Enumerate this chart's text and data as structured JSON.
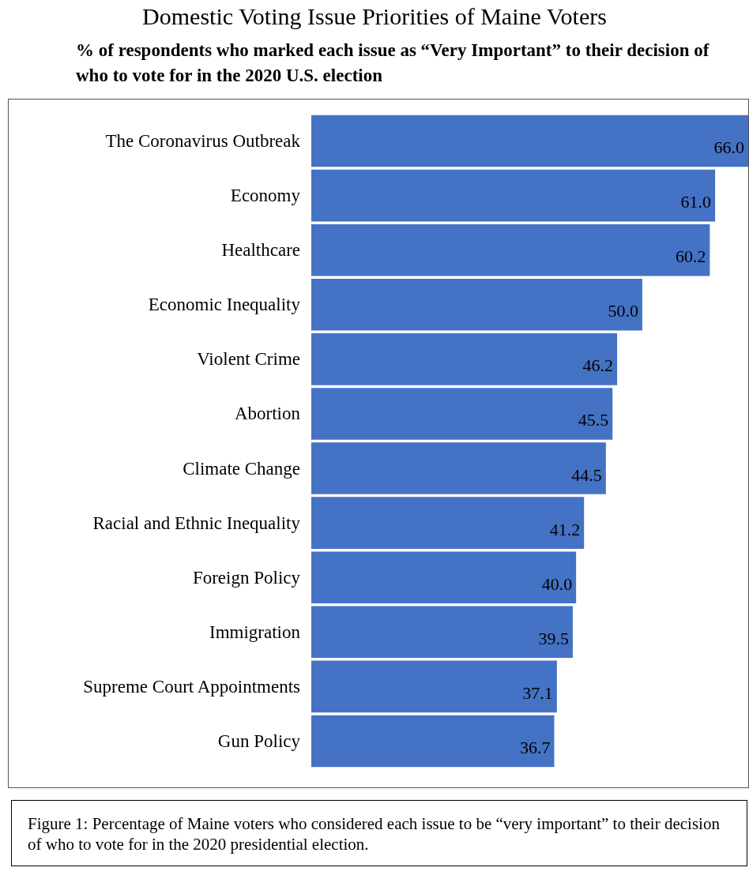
{
  "chart_data": {
    "type": "bar",
    "orientation": "horizontal",
    "title": "Domestic Voting Issue Priorities of Maine Voters",
    "subtitle": "% of respondents who marked each issue as “Very Important” to their decision of who to vote for in the 2020 U.S. election",
    "categories": [
      "The Coronavirus Outbreak",
      "Economy",
      "Healthcare",
      "Economic Inequality",
      "Violent Crime",
      "Abortion",
      "Climate Change",
      "Racial and Ethnic Inequality",
      "Foreign Policy",
      "Immigration",
      "Supreme Court Appointments",
      "Gun Policy"
    ],
    "values": [
      66.0,
      61.0,
      60.2,
      50.0,
      46.2,
      45.5,
      44.5,
      41.2,
      40.0,
      39.5,
      37.1,
      36.7
    ],
    "value_labels": [
      "66.0",
      "61.0",
      "60.2",
      "50.0",
      "46.2",
      "45.5",
      "44.5",
      "41.2",
      "40.0",
      "39.5",
      "37.1",
      "36.7"
    ],
    "color": "#4472c4",
    "xlim": [
      0,
      66
    ],
    "tick_labels": "y",
    "annotations": [
      "Figure 1: Percentage of Maine voters who considered each issue to be “very important” to their decision of who to vote for in the 2020 presidential election."
    ]
  }
}
